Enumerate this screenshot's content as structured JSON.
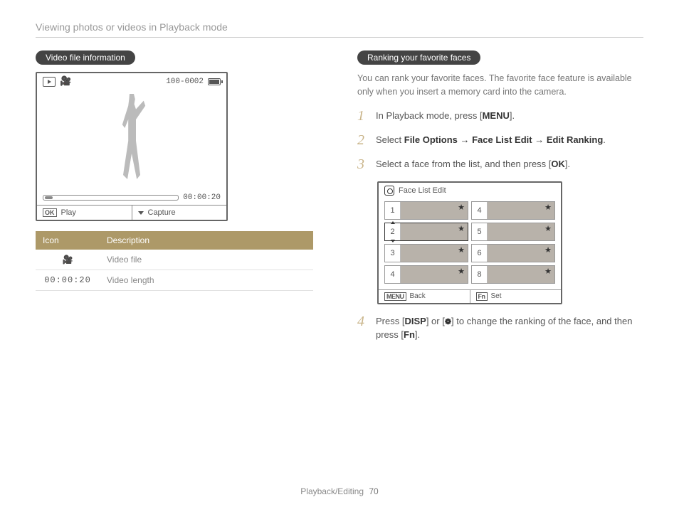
{
  "page_title": "Viewing photos or videos in Playback mode",
  "left": {
    "pill": "Video file information",
    "cam": {
      "file_counter": "100-0002",
      "elapsed": "00:00:20",
      "play_label": "Play",
      "capture_label": "Capture"
    },
    "table": {
      "head_icon": "Icon",
      "head_desc": "Description",
      "rows": [
        {
          "icon_glyph": "🎥",
          "desc": "Video file"
        },
        {
          "icon_glyph": "00:00:20",
          "desc": "Video length",
          "mono": true
        }
      ]
    }
  },
  "right": {
    "pill": "Ranking your favorite faces",
    "intro": "You can rank your favorite faces. The favorite face feature is available only when you insert a memory card into the camera.",
    "steps": {
      "s1_a": "In Playback mode, press [",
      "s1_btn": "MENU",
      "s1_b": "].",
      "s2_a": "Select ",
      "s2_path": "File Options → Face List Edit → Edit Ranking",
      "s2_b": ".",
      "s3_a": "Select a face from the list, and then press [",
      "s3_btn": "OK",
      "s3_b": "].",
      "s4_a": "Press [",
      "s4_btn1": "DISP",
      "s4_b": "] or [",
      "s4_btn2": "❁",
      "s4_c": "] to change the ranking of the face, and then press [",
      "s4_btn3": "Fn",
      "s4_d": "]."
    },
    "facebox": {
      "title": "Face List Edit",
      "cells": [
        "1",
        "4",
        "2",
        "5",
        "3",
        "6",
        "4",
        "8"
      ],
      "selected_index": 2,
      "back_btn": "MENU",
      "back_label": "Back",
      "set_btn": "Fn",
      "set_label": "Set"
    }
  },
  "footer": {
    "section": "Playback/Editing",
    "page": "70"
  }
}
